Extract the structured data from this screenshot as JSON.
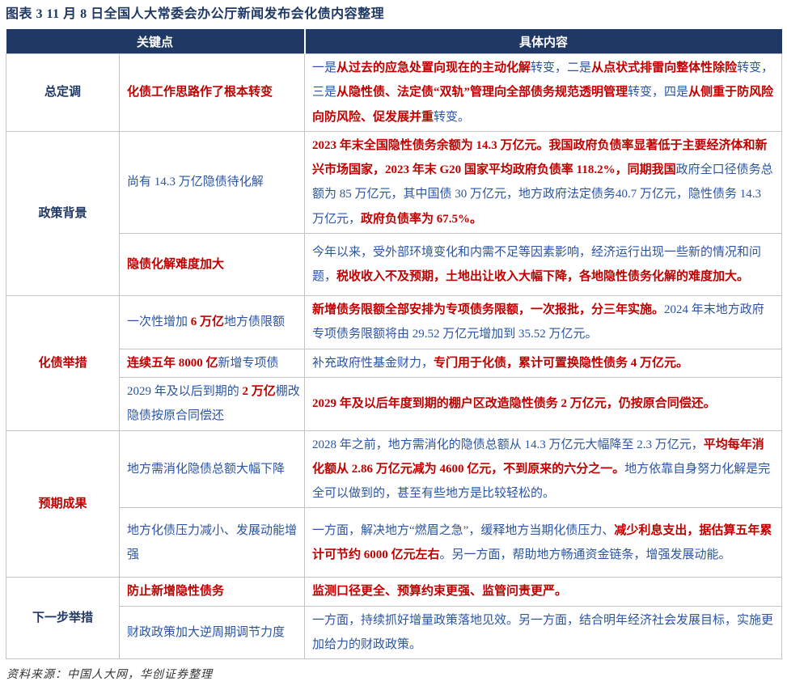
{
  "title": "图表 3  11 月 8 日全国人大常委会办公厅新闻发布会化债内容整理",
  "footer": "资料来源：中国人大网，华创证券整理",
  "colors": {
    "header_bg": "#1F3864",
    "category_navy": "#1F3864",
    "category_red": "#C00000",
    "body_blue": "#2B55A2",
    "emphasis_red": "#C00000",
    "border": "#C3C3C3"
  },
  "table": {
    "header_key": "关键点",
    "header_content": "具体内容",
    "groups": [
      {
        "category": "总定调",
        "category_style": "navy",
        "rows": [
          {
            "min_h": 96,
            "key": [
              {
                "t": "化债工作思路作了根本转变",
                "s": "r"
              }
            ],
            "content": [
              {
                "t": "一是",
                "s": "b"
              },
              {
                "t": "从过去的应急处置向现在的主动化解",
                "s": "r"
              },
              {
                "t": "转变，二是",
                "s": "b"
              },
              {
                "t": "从点状式排雷向整体性除险",
                "s": "r"
              },
              {
                "t": "转变，三是",
                "s": "b"
              },
              {
                "t": "从隐性债、法定债“双轨”管理向全部债务规范透明管理",
                "s": "r"
              },
              {
                "t": "转变，四是",
                "s": "b"
              },
              {
                "t": "从侧重于防风险向防风险、促发展并重",
                "s": "r"
              },
              {
                "t": "转变。",
                "s": "b"
              }
            ]
          }
        ]
      },
      {
        "category": "政策背景",
        "category_style": "navy",
        "rows": [
          {
            "min_h": 106,
            "key": [
              {
                "t": "尚有 14.3 万亿隐债待化解",
                "s": "b"
              }
            ],
            "content": [
              {
                "t": "2023 年末全国隐性债务余额为 14.3 万亿元。我国政府负债率显著低于主要经济体和新兴市场国家，2023 年末 G20 国家平均政府负债率 118.2%，同期我国",
                "s": "r"
              },
              {
                "t": "政府全口径债务总额为 85 万亿元，其中国债 30 万亿元，地方政府法定债务40.7 万亿元，隐性债务 14.3 万亿元，",
                "s": "b"
              },
              {
                "t": "政府负债率为 67.5%。",
                "s": "r"
              }
            ]
          },
          {
            "min_h": 77,
            "key": [
              {
                "t": "隐债化解难度加大",
                "s": "r"
              }
            ],
            "content": [
              {
                "t": "今年以来，受外部环境变化和内需不足等因素影响，经济运行出现一些新的情况和问题，",
                "s": "b"
              },
              {
                "t": "税收收入不及预期，土地出让收入大幅下降，各地隐性债务化解的难度加大。",
                "s": "r"
              }
            ]
          }
        ]
      },
      {
        "category": "化债举措",
        "category_style": "red",
        "rows": [
          {
            "min_h": 61,
            "key": [
              {
                "t": "一次性增加 ",
                "s": "b"
              },
              {
                "t": "6 万亿",
                "s": "r"
              },
              {
                "t": "地方债限额",
                "s": "b"
              }
            ],
            "content": [
              {
                "t": "新增债务限额全部安排为专项债务限额，一次报批，分三年实施。",
                "s": "r"
              },
              {
                "t": "2024 年末地方政府专项债务限额将由 29.52 万亿元增加到 35.52 万亿元。",
                "s": "b"
              }
            ]
          },
          {
            "min_h": 31,
            "key": [
              {
                "t": "连续五年 8000 亿",
                "s": "r"
              },
              {
                "t": "新增专项债",
                "s": "b"
              }
            ],
            "content": [
              {
                "t": "补充政府性基金财力，",
                "s": "b"
              },
              {
                "t": "专门用于化债，累计可置换隐性债务 4 万亿元。",
                "s": "r"
              }
            ]
          },
          {
            "min_h": 56,
            "key": [
              {
                "t": "2029 年及以后到期的 ",
                "s": "b"
              },
              {
                "t": "2 万亿",
                "s": "r"
              },
              {
                "t": "棚改隐债按原合同偿还",
                "s": "b"
              }
            ],
            "content": [
              {
                "t": "2029 年及以后年度到期的棚户区改造隐性债务 2 万亿元，仍按原合同偿还。",
                "s": "r"
              }
            ]
          }
        ]
      },
      {
        "category": "预期成果",
        "category_style": "red",
        "rows": [
          {
            "min_h": 90,
            "key": [
              {
                "t": "地方需消化隐债总额大幅下降",
                "s": "b"
              }
            ],
            "content": [
              {
                "t": "2028 年之前，地方需消化的隐债总额从 14.3 万亿元大幅降至 2.3 万亿元，",
                "s": "b"
              },
              {
                "t": "平均每年消化额从 2.86 万亿元减为 4600 亿元，不到原来的六分之一。",
                "s": "r"
              },
              {
                "t": "地方依靠自身努力化解是完全可以做到的，甚至有些地方是比较轻松的。",
                "s": "b"
              }
            ]
          },
          {
            "min_h": 86,
            "key": [
              {
                "t": "地方化债压力减小、发展动能增强",
                "s": "b"
              }
            ],
            "content": [
              {
                "t": "一方面，解决地方“燃眉之急”，缓释地方当期化债压力、",
                "s": "b"
              },
              {
                "t": "减少利息支出，据估算五年累计可节约 6000 亿元左右",
                "s": "r"
              },
              {
                "t": "。另一方面，帮助地方畅通资金链条，增强发展动能。",
                "s": "b"
              }
            ]
          }
        ]
      },
      {
        "category": "下一步举措",
        "category_style": "navy",
        "rows": [
          {
            "min_h": 32,
            "key": [
              {
                "t": "防止新增隐性债务",
                "s": "r"
              }
            ],
            "content": [
              {
                "t": "监测口径更全、预算约束更强、监管问责更严。",
                "s": "r"
              }
            ]
          },
          {
            "min_h": 60,
            "key": [
              {
                "t": "财政政策加大逆周期调节力度",
                "s": "b"
              }
            ],
            "content": [
              {
                "t": "一方面，持续抓好增量政策落地见效。另一方面，结合明年经济社会发展目标，实施更加给力的财政政策。",
                "s": "b"
              }
            ]
          }
        ]
      }
    ]
  }
}
